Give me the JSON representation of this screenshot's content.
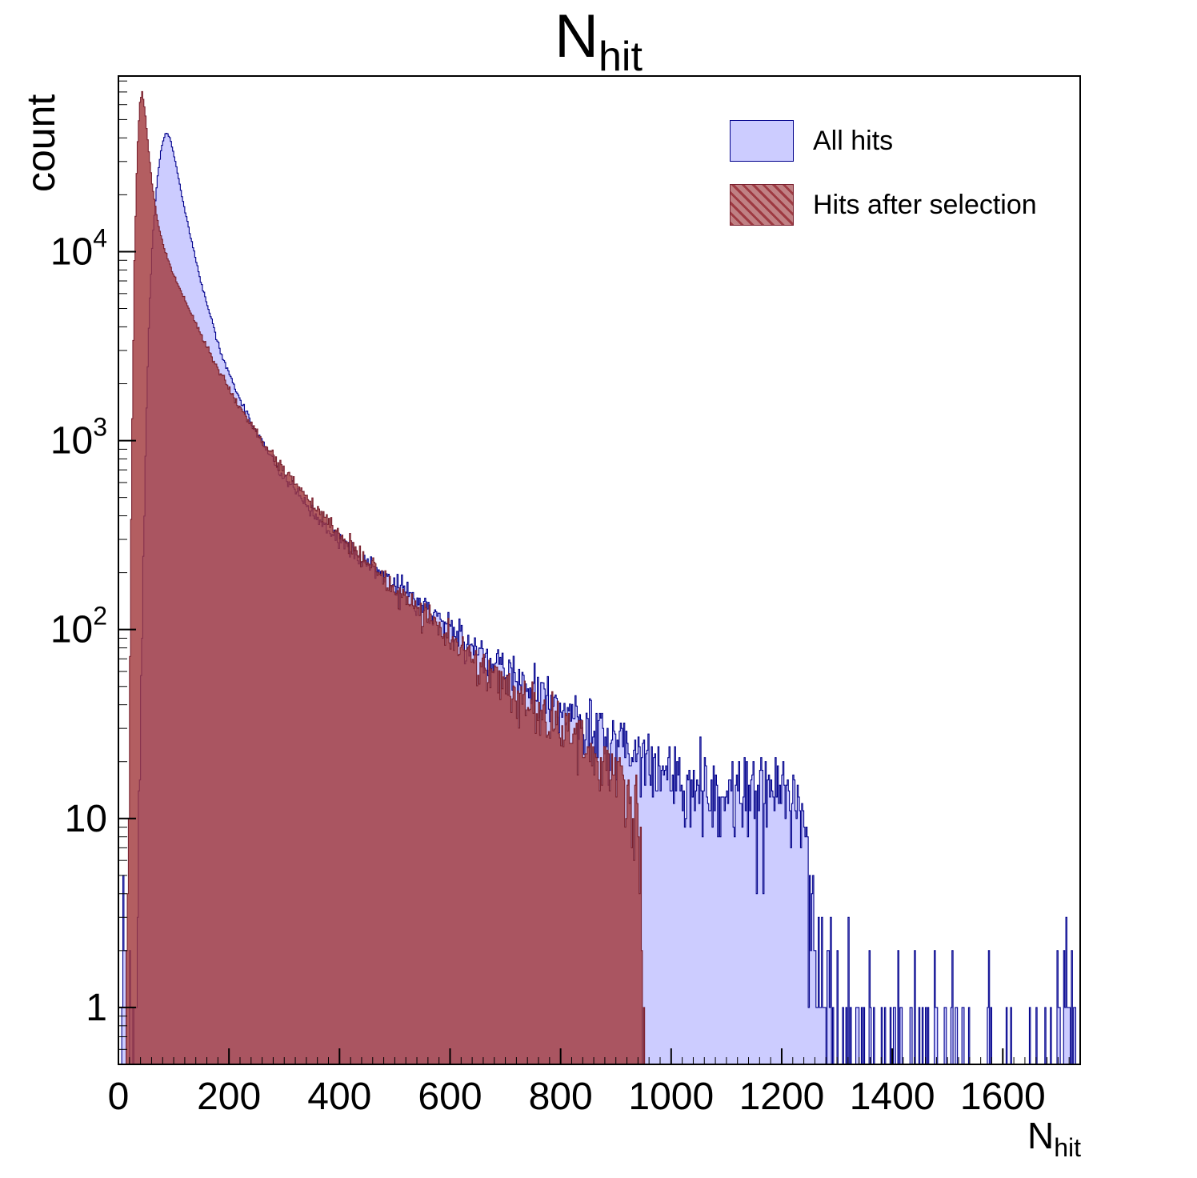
{
  "title": {
    "main": "N",
    "sub": "hit"
  },
  "axes": {
    "y_label": "count",
    "x_label_main": "N",
    "x_label_sub": "hit",
    "x_ticks": [
      {
        "label": "0",
        "value": 0
      },
      {
        "label": "200",
        "value": 200
      },
      {
        "label": "400",
        "value": 400
      },
      {
        "label": "600",
        "value": 600
      },
      {
        "label": "800",
        "value": 800
      },
      {
        "label": "1000",
        "value": 1000
      },
      {
        "label": "1200",
        "value": 1200
      },
      {
        "label": "1400",
        "value": 1400
      },
      {
        "label": "1600",
        "value": 1600
      }
    ],
    "y_ticks": [
      {
        "text": "1",
        "exp": "",
        "value": 1
      },
      {
        "text": "10",
        "exp": "",
        "value": 10
      },
      {
        "text": "10",
        "exp": "2",
        "value": 100
      },
      {
        "text": "10",
        "exp": "3",
        "value": 1000
      },
      {
        "text": "10",
        "exp": "4",
        "value": 10000
      }
    ]
  },
  "legend": {
    "items": [
      {
        "label": "All hits",
        "swatch": "blue"
      },
      {
        "label": "Hits after selection",
        "swatch": "red"
      }
    ]
  },
  "colors": {
    "background": "#ffffff",
    "frame": "#000000",
    "all_hits_fill": "#ccccff",
    "all_hits_line": "#00008b",
    "selection_fill": "rgba(162,58,62,0.82)",
    "selection_line": "#7a2230"
  },
  "chart_data": {
    "type": "bar",
    "subtype": "histogram-overlay-log-y",
    "title": "N_hit",
    "xlabel": "N_hit",
    "ylabel": "count",
    "x_range": [
      0,
      1740
    ],
    "y_range": [
      0.5,
      85000
    ],
    "y_scale": "log",
    "bin_width": 2,
    "grid": false,
    "legend_position": "top-right-inside",
    "series": [
      {
        "name": "All hits",
        "anchors": [
          [
            4,
            0.3
          ],
          [
            10,
            2.5
          ],
          [
            16,
            0.5
          ],
          [
            26,
            0.7
          ],
          [
            36,
            8
          ],
          [
            44,
            150
          ],
          [
            50,
            1200
          ],
          [
            56,
            5000
          ],
          [
            62,
            12000
          ],
          [
            70,
            24000
          ],
          [
            78,
            36000
          ],
          [
            86,
            43000
          ],
          [
            94,
            39500
          ],
          [
            104,
            29000
          ],
          [
            116,
            19000
          ],
          [
            130,
            12200
          ],
          [
            146,
            7600
          ],
          [
            162,
            5000
          ],
          [
            180,
            3300
          ],
          [
            200,
            2250
          ],
          [
            220,
            1650
          ],
          [
            245,
            1180
          ],
          [
            270,
            880
          ],
          [
            300,
            640
          ],
          [
            330,
            495
          ],
          [
            360,
            395
          ],
          [
            400,
            300
          ],
          [
            440,
            238
          ],
          [
            480,
            192
          ],
          [
            520,
            158
          ],
          [
            560,
            128
          ],
          [
            600,
            102
          ],
          [
            640,
            82
          ],
          [
            680,
            66
          ],
          [
            720,
            55
          ],
          [
            760,
            46
          ],
          [
            800,
            38
          ],
          [
            840,
            32
          ],
          [
            880,
            27
          ],
          [
            920,
            23
          ],
          [
            960,
            19
          ],
          [
            1000,
            16.5
          ],
          [
            1040,
            14.5
          ],
          [
            1080,
            13.5
          ],
          [
            1120,
            13.5
          ],
          [
            1160,
            14.5
          ],
          [
            1200,
            15
          ],
          [
            1225,
            13
          ],
          [
            1242,
            9
          ],
          [
            1254,
            4
          ],
          [
            1264,
            2
          ],
          [
            1276,
            1.1
          ],
          [
            1292,
            0.7
          ],
          [
            1312,
            0.5
          ],
          [
            1340,
            0.42
          ],
          [
            1376,
            0.36
          ],
          [
            1412,
            0.3
          ],
          [
            1450,
            0.28
          ],
          [
            1490,
            0.24
          ],
          [
            1530,
            0.22
          ],
          [
            1570,
            0.18
          ],
          [
            1610,
            0.14
          ],
          [
            1650,
            0.12
          ],
          [
            1690,
            0.25
          ],
          [
            1716,
            0.8
          ],
          [
            1732,
            1.4
          ]
        ]
      },
      {
        "name": "Hits after selection",
        "anchors": [
          [
            14,
            0.4
          ],
          [
            19,
            15
          ],
          [
            24,
            800
          ],
          [
            29,
            9000
          ],
          [
            34,
            34000
          ],
          [
            39,
            62000
          ],
          [
            43,
            70000
          ],
          [
            48,
            56000
          ],
          [
            54,
            36000
          ],
          [
            62,
            21500
          ],
          [
            72,
            14000
          ],
          [
            84,
            10200
          ],
          [
            98,
            7800
          ],
          [
            114,
            6100
          ],
          [
            132,
            4700
          ],
          [
            150,
            3600
          ],
          [
            170,
            2750
          ],
          [
            190,
            2150
          ],
          [
            212,
            1640
          ],
          [
            236,
            1270
          ],
          [
            262,
            980
          ],
          [
            290,
            760
          ],
          [
            320,
            590
          ],
          [
            352,
            455
          ],
          [
            386,
            352
          ],
          [
            420,
            278
          ],
          [
            456,
            218
          ],
          [
            492,
            172
          ],
          [
            530,
            136
          ],
          [
            570,
            107
          ],
          [
            610,
            85
          ],
          [
            650,
            68
          ],
          [
            690,
            54
          ],
          [
            730,
            44
          ],
          [
            770,
            35
          ],
          [
            810,
            29
          ],
          [
            850,
            24
          ],
          [
            890,
            19.5
          ],
          [
            915,
            16.5
          ],
          [
            930,
            14
          ],
          [
            940,
            11
          ],
          [
            946,
            5
          ],
          [
            950,
            1.5
          ],
          [
            955,
            0.3
          ],
          [
            960,
            0.05
          ]
        ]
      }
    ]
  }
}
